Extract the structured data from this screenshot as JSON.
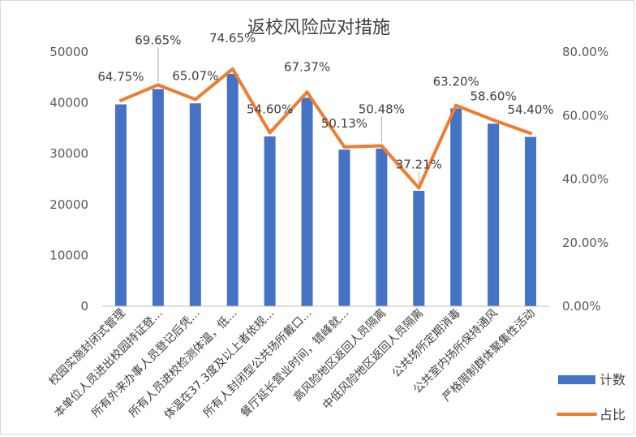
{
  "chart_data": {
    "type": "bar",
    "title": "返校风险应对措施",
    "categories": [
      "校园实施封闭式管理",
      "本单位人员进出校园持证登...",
      "所有外来办事人员登记后凭...",
      "所有人员进校检测体温，低...",
      "体温在37.3度及以上者依规...",
      "所有人封闭型公共场所戴口...",
      "餐厅延长营业时间，错峰就...",
      "高风险地区返回人员隔离",
      "中低风险地区返回人员隔离",
      "公共场所定期消毒",
      "公共室内场所保持通风",
      "严格限制群体聚集性活动"
    ],
    "series": [
      {
        "name": "计数",
        "kind": "bar",
        "axis": "left",
        "color": "#4472C4",
        "values": [
          39700,
          42700,
          39900,
          45700,
          33400,
          41000,
          30800,
          31000,
          22700,
          38900,
          35900,
          33300
        ]
      },
      {
        "name": "占比",
        "kind": "line",
        "axis": "right",
        "color": "#ED7D31",
        "values": [
          64.75,
          69.65,
          65.07,
          74.65,
          54.6,
          67.37,
          50.13,
          50.48,
          37.21,
          63.2,
          58.6,
          54.4
        ],
        "labels": [
          "64.75%",
          "69.65%",
          "65.07%",
          "74.65%",
          "54.60%",
          "67.37%",
          "50.13%",
          "50.48%",
          "37.21%",
          "63.20%",
          "58.60%",
          "54.40%"
        ]
      }
    ],
    "y_left": {
      "min": 0,
      "max": 50000,
      "ticks": [
        0,
        10000,
        20000,
        30000,
        40000,
        50000
      ]
    },
    "y_right": {
      "min": 0,
      "max": 80,
      "ticks": [
        "0.00%",
        "20.00%",
        "40.00%",
        "60.00%",
        "80.00%"
      ]
    },
    "grid": false,
    "legend_position": "bottom-right"
  }
}
